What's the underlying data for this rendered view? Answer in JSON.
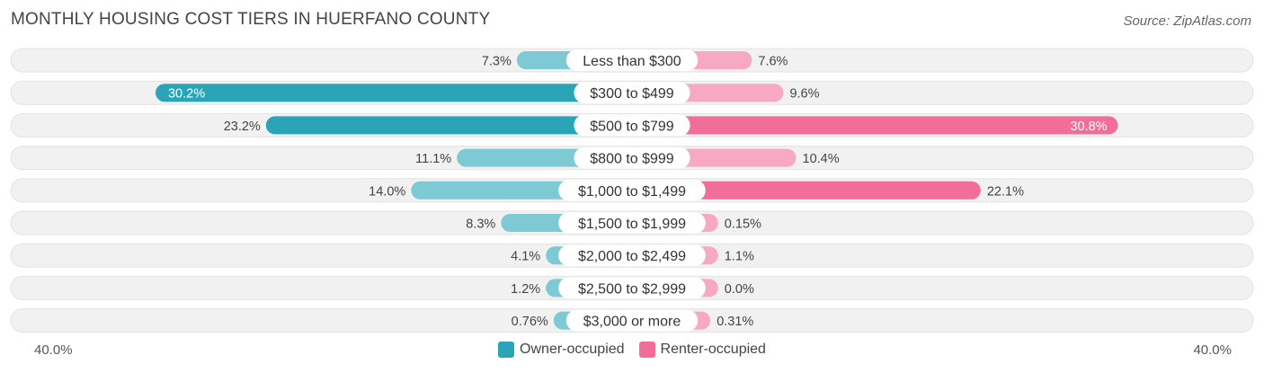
{
  "colors": {
    "owner_dark": "#2aa5b8",
    "owner_light": "#7dc9d4",
    "renter_dark": "#f06e98",
    "renter_light": "#f7a9c3",
    "row_bg": "#f1f1f1",
    "row_border": "#e3e3e3"
  },
  "chart_data": {
    "type": "bar",
    "orientation": "diverging-horizontal",
    "title": "MONTHLY HOUSING COST TIERS IN HUERFANO COUNTY",
    "source": "Source: ZipAtlas.com",
    "axis_max": 40.0,
    "axis_min_label": "40.0%",
    "axis_max_label": "40.0%",
    "categories": [
      "Less than $300",
      "$300 to $499",
      "$500 to $799",
      "$800 to $999",
      "$1,000 to $1,499",
      "$1,500 to $1,999",
      "$2,000 to $2,499",
      "$2,500 to $2,999",
      "$3,000 or more"
    ],
    "series": [
      {
        "name": "Owner-occupied",
        "values": [
          7.3,
          30.2,
          23.2,
          11.1,
          14.0,
          8.3,
          4.1,
          1.2,
          0.76
        ],
        "labels": [
          "7.3%",
          "30.2%",
          "23.2%",
          "11.1%",
          "14.0%",
          "8.3%",
          "4.1%",
          "1.2%",
          "0.76%"
        ]
      },
      {
        "name": "Renter-occupied",
        "values": [
          7.6,
          9.6,
          30.8,
          10.4,
          22.1,
          0.15,
          1.1,
          0.0,
          0.31
        ],
        "labels": [
          "7.6%",
          "9.6%",
          "30.8%",
          "10.4%",
          "22.1%",
          "0.15%",
          "1.1%",
          "0.0%",
          "0.31%"
        ]
      }
    ],
    "legend": [
      "Owner-occupied",
      "Renter-occupied"
    ]
  }
}
